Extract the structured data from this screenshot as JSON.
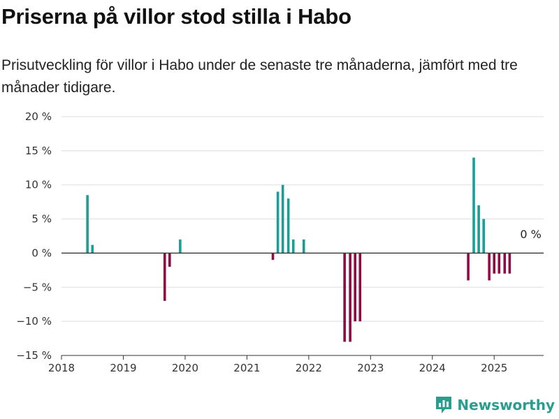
{
  "header": {
    "title": "Priserna på villor stod stilla i Habo",
    "subtitle": "Prisutveckling för villor i Habo under de senaste tre månaderna, jämfört med tre månader tidigare."
  },
  "brand": {
    "name": "Newsworthy",
    "icon": "newsworthy-logo-icon"
  },
  "colors": {
    "positive": "#1a9e96",
    "negative": "#8e0b45",
    "grid": "#dddddd",
    "axis": "#333333"
  },
  "chart_data": {
    "type": "bar",
    "title": "Priserna på villor stod stilla i Habo",
    "xlabel": "",
    "ylabel": "",
    "ylim": [
      -15,
      20
    ],
    "xlim": [
      2018.0,
      2025.8
    ],
    "yticks": [
      {
        "value": 20,
        "label": "20 %"
      },
      {
        "value": 15,
        "label": "15 %"
      },
      {
        "value": 10,
        "label": "10 %"
      },
      {
        "value": 5,
        "label": "5 %"
      },
      {
        "value": 0,
        "label": "0 %"
      },
      {
        "value": -5,
        "label": "−5 %"
      },
      {
        "value": -10,
        "label": "−10 %"
      },
      {
        "value": -15,
        "label": "−15 %"
      }
    ],
    "xticks": [
      {
        "value": 2018,
        "label": "2018"
      },
      {
        "value": 2019,
        "label": "2019"
      },
      {
        "value": 2020,
        "label": "2020"
      },
      {
        "value": 2021,
        "label": "2021"
      },
      {
        "value": 2022,
        "label": "2022"
      },
      {
        "value": 2023,
        "label": "2023"
      },
      {
        "value": 2024,
        "label": "2024"
      },
      {
        "value": 2025,
        "label": "2025"
      }
    ],
    "grid": true,
    "annotation": {
      "text": "0 %",
      "x": 2025.42,
      "y": 2.2
    },
    "points": [
      {
        "x": 2018.42,
        "y": 8.5
      },
      {
        "x": 2018.5,
        "y": 1.2
      },
      {
        "x": 2019.67,
        "y": -7
      },
      {
        "x": 2019.75,
        "y": -2
      },
      {
        "x": 2019.92,
        "y": 2
      },
      {
        "x": 2021.42,
        "y": -1
      },
      {
        "x": 2021.5,
        "y": 9
      },
      {
        "x": 2021.58,
        "y": 10
      },
      {
        "x": 2021.67,
        "y": 8
      },
      {
        "x": 2021.75,
        "y": 2
      },
      {
        "x": 2021.92,
        "y": 2
      },
      {
        "x": 2022.58,
        "y": -13
      },
      {
        "x": 2022.67,
        "y": -13
      },
      {
        "x": 2022.75,
        "y": -10
      },
      {
        "x": 2022.83,
        "y": -10
      },
      {
        "x": 2024.58,
        "y": -4
      },
      {
        "x": 2024.67,
        "y": 14
      },
      {
        "x": 2024.75,
        "y": 7
      },
      {
        "x": 2024.83,
        "y": 5
      },
      {
        "x": 2024.92,
        "y": -4
      },
      {
        "x": 2025.0,
        "y": -3
      },
      {
        "x": 2025.08,
        "y": -3
      },
      {
        "x": 2025.17,
        "y": -3
      },
      {
        "x": 2025.25,
        "y": -3
      }
    ]
  }
}
